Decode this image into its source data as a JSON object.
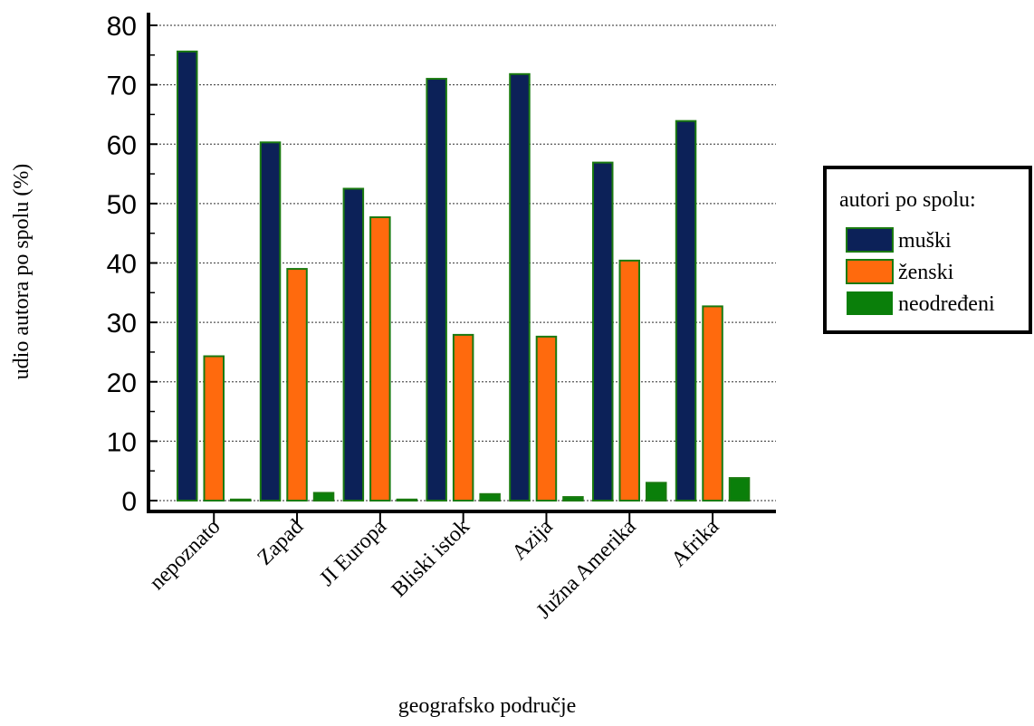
{
  "chart_data": {
    "type": "bar",
    "xlabel": "geografsko područje",
    "ylabel": "udio autora po spolu (%)",
    "ylim": [
      0,
      80
    ],
    "yticks": [
      0,
      10,
      20,
      30,
      40,
      50,
      60,
      70,
      80
    ],
    "grid": true,
    "categories": [
      "nepoznato",
      "Zapad",
      "JI Europa",
      "Bliski istok",
      "Azija",
      "Južna Amerika",
      "Afrika"
    ],
    "series": [
      {
        "name": "muški",
        "color": "#0c2158",
        "values": [
          75.6,
          60.3,
          52.5,
          71.0,
          71.8,
          56.9,
          63.9
        ]
      },
      {
        "name": "ženski",
        "color": "#ff6a0d",
        "values": [
          24.3,
          39.0,
          47.7,
          27.9,
          27.6,
          40.4,
          32.7
        ]
      },
      {
        "name": "neodređeni",
        "color": "#0a7f0a",
        "values": [
          0.1,
          1.3,
          0.1,
          1.1,
          0.6,
          3.0,
          3.8
        ]
      }
    ],
    "legend": {
      "title": "autori po spolu:",
      "position": "right"
    }
  }
}
